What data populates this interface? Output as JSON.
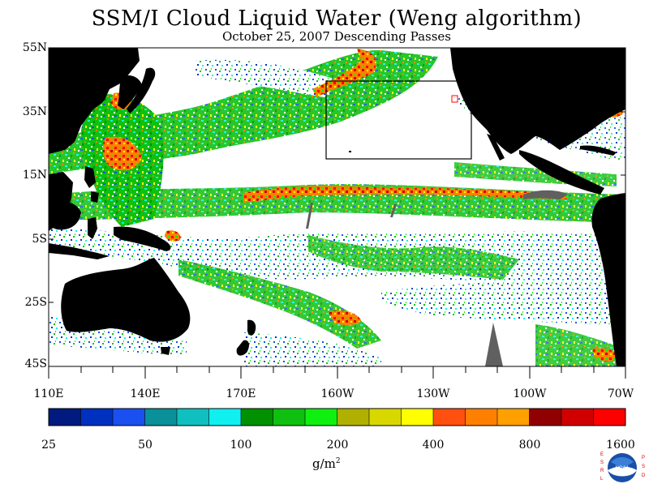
{
  "title": "SSM/I Cloud Liquid Water (Weng algorithm)",
  "subtitle": "October 25, 2007  Descending Passes",
  "lat_labels": [
    "55N",
    "35N",
    "15N",
    "5S",
    "25S",
    "45S"
  ],
  "lon_labels": [
    "110E",
    "140E",
    "170E",
    "160W",
    "130W",
    "100W",
    "70W"
  ],
  "colorbar": {
    "labels": [
      "25",
      "50",
      "100",
      "200",
      "400",
      "800",
      "1600"
    ],
    "units_base": "g/m",
    "units_exp": "2",
    "colors": [
      "#001a80",
      "#0030c0",
      "#1a50f0",
      "#0a9098",
      "#10c0c0",
      "#10f0f0",
      "#009000",
      "#10c010",
      "#10f010",
      "#b0b000",
      "#d8d800",
      "#ffff00",
      "#ff5010",
      "#ff8000",
      "#ffa000",
      "#900000",
      "#d00000",
      "#ff0000"
    ]
  },
  "logo": {
    "left": "ESRL",
    "center": "NOAA",
    "right": "PSD"
  },
  "colors": {
    "land": "#000000",
    "no_data": "#ffffff",
    "missing": "#606060",
    "box": "#000000",
    "red_marker": "#ff0000"
  }
}
